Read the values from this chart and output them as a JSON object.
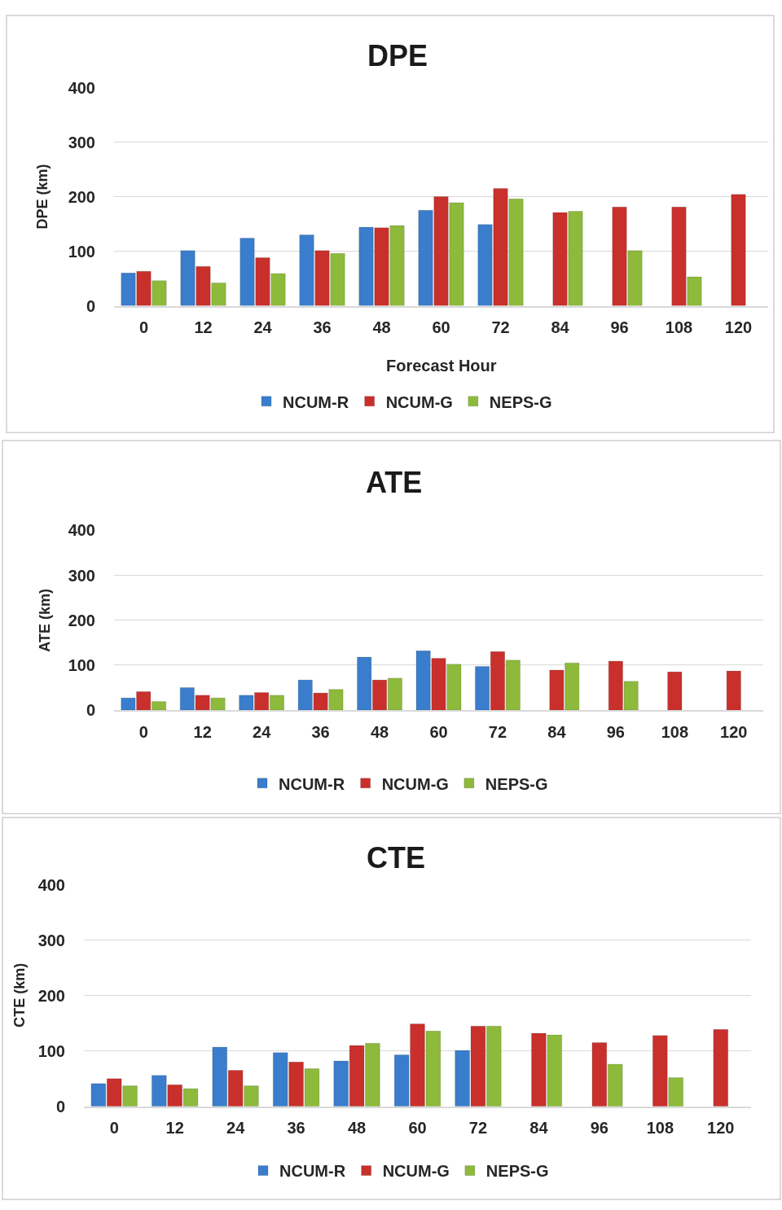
{
  "chart_data": [
    {
      "type": "bar",
      "title": "DPE",
      "xlabel": "Forecast Hour",
      "ylabel": "DPE (km)",
      "categories": [
        "0",
        "12",
        "24",
        "36",
        "48",
        "60",
        "72",
        "84",
        "96",
        "108",
        "120"
      ],
      "ylim": [
        0,
        400
      ],
      "yticks": [
        0,
        100,
        200,
        300,
        400
      ],
      "grid": "y",
      "legend": "bottom",
      "series": [
        {
          "name": "NCUM-R",
          "color": "#3a7dcc",
          "values": [
            60,
            101,
            124,
            130,
            144,
            175,
            149,
            null,
            null,
            null,
            null
          ]
        },
        {
          "name": "NCUM-G",
          "color": "#c9302c",
          "values": [
            63,
            72,
            88,
            101,
            143,
            200,
            215,
            171,
            181,
            181,
            204
          ]
        },
        {
          "name": "NEPS-G",
          "color": "#8dba3b",
          "values": [
            46,
            42,
            59,
            96,
            147,
            189,
            196,
            173,
            101,
            53,
            null
          ]
        }
      ]
    },
    {
      "type": "bar",
      "title": "ATE",
      "ylabel": "ATE (km)",
      "categories": [
        "0",
        "12",
        "24",
        "36",
        "48",
        "60",
        "72",
        "84",
        "96",
        "108",
        "120"
      ],
      "ylim": [
        0,
        400
      ],
      "yticks": [
        0,
        100,
        200,
        300,
        400
      ],
      "grid": "y",
      "legend": "bottom",
      "series": [
        {
          "name": "NCUM-R",
          "color": "#3a7dcc",
          "values": [
            27,
            50,
            33,
            67,
            118,
            132,
            97,
            null,
            null,
            null,
            null
          ]
        },
        {
          "name": "NCUM-G",
          "color": "#c9302c",
          "values": [
            41,
            33,
            39,
            38,
            67,
            115,
            130,
            89,
            109,
            85,
            87
          ]
        },
        {
          "name": "NEPS-G",
          "color": "#8dba3b",
          "values": [
            19,
            27,
            33,
            46,
            71,
            102,
            111,
            105,
            64,
            null,
            null
          ]
        }
      ]
    },
    {
      "type": "bar",
      "title": "CTE",
      "ylabel": "CTE (km)",
      "categories": [
        "0",
        "12",
        "24",
        "36",
        "48",
        "60",
        "72",
        "84",
        "96",
        "108",
        "120"
      ],
      "ylim": [
        0,
        400
      ],
      "yticks": [
        0,
        100,
        200,
        300,
        400
      ],
      "grid": "y",
      "legend": "bottom",
      "series": [
        {
          "name": "NCUM-R",
          "color": "#3a7dcc",
          "values": [
            41,
            56,
            107,
            97,
            82,
            93,
            101,
            null,
            null,
            null,
            null
          ]
        },
        {
          "name": "NCUM-G",
          "color": "#c9302c",
          "values": [
            50,
            39,
            65,
            80,
            110,
            149,
            145,
            132,
            115,
            128,
            139
          ]
        },
        {
          "name": "NEPS-G",
          "color": "#8dba3b",
          "values": [
            37,
            32,
            37,
            68,
            114,
            136,
            145,
            129,
            76,
            52,
            null
          ]
        }
      ]
    }
  ]
}
